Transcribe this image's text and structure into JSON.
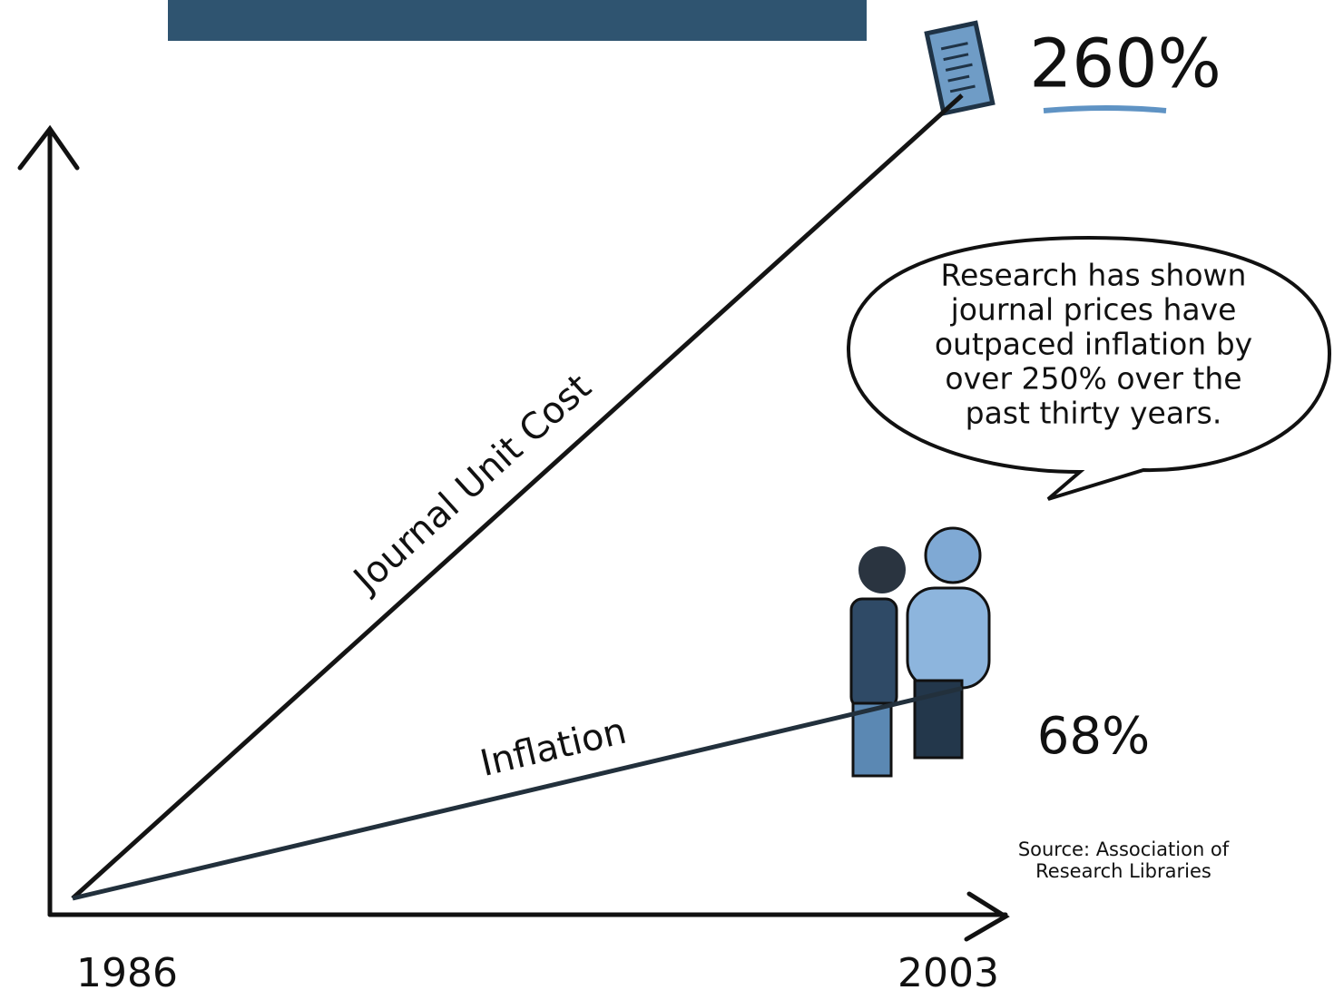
{
  "chart_data": {
    "type": "line",
    "x": [
      1986,
      2003
    ],
    "xlim": [
      1986,
      2003
    ],
    "xticks": [
      1986,
      2003
    ],
    "ylim": [
      0,
      265
    ],
    "series": [
      {
        "name": "Journal Unit Cost",
        "color": "#141414",
        "values": [
          0,
          260
        ],
        "value_labels": [
          null,
          "260%"
        ]
      },
      {
        "name": "Inflation",
        "color": "#22303c",
        "values": [
          0,
          68
        ],
        "value_labels": [
          null,
          "68%"
        ]
      }
    ],
    "annotation": [
      "Research has shown",
      "journal prices have",
      "outpaced inflation by",
      "over 250% over the",
      "past thirty years."
    ],
    "source": [
      "Source: Association of",
      "Research Libraries"
    ]
  }
}
